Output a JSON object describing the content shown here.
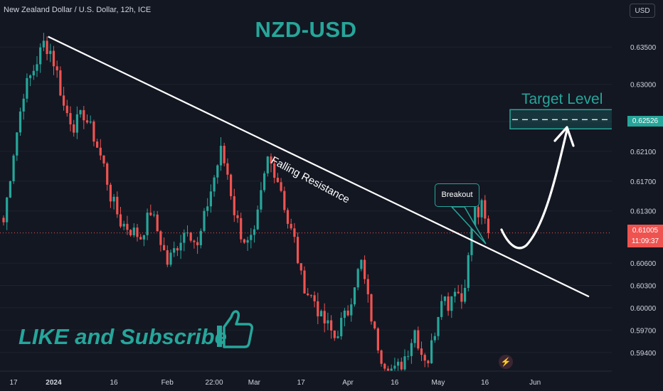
{
  "header": {
    "symbol_info": "New Zealand Dollar / U.S. Dollar, 12h, ICE",
    "title": "NZD-USD",
    "currency": "USD"
  },
  "annotations": {
    "target_label": "Target Level",
    "falling_resistance": "Falling Resistance",
    "breakout": "Breakout",
    "cta": "LIKE and Subscribe"
  },
  "price_tag": {
    "price": "0.61005",
    "countdown": "11:09:37",
    "color": "#ef5350"
  },
  "target_tag": {
    "price": "0.62526",
    "color": "#26a69a"
  },
  "colors": {
    "background": "#131722",
    "up": "#26a69a",
    "down": "#ef5350",
    "accent": "#26a69a",
    "axis_text": "#d1d4dc"
  },
  "icons": {
    "thumbs_up": "thumbs-up-icon",
    "bolt": "lightning-bolt-icon"
  },
  "chart_data": {
    "type": "candlestick",
    "symbol": "NZDUSD",
    "interval": "12h",
    "ylim": [
      0.5915,
      0.6375
    ],
    "y_ticks": [
      "0.63500",
      "0.63000",
      "0.62500",
      "0.62100",
      "0.61700",
      "0.61300",
      "0.60600",
      "0.60300",
      "0.60000",
      "0.59700",
      "0.59400"
    ],
    "y_tick_values": [
      0.635,
      0.63,
      0.625,
      0.621,
      0.617,
      0.613,
      0.606,
      0.603,
      0.6,
      0.597,
      0.594
    ],
    "x_ticks": [
      "17",
      "2024",
      "16",
      "Feb",
      "22:00",
      "Mar",
      "17",
      "Apr",
      "16",
      "May",
      "16",
      "Jun"
    ],
    "x_tick_positions": [
      0,
      12,
      30,
      46,
      60,
      72,
      86,
      100,
      114,
      127,
      141,
      156
    ],
    "last_price": 0.61005,
    "target_level": 0.62526,
    "trendline": {
      "start": [
        1,
        0.6364
      ],
      "end": [
        170,
        0.6015
      ]
    },
    "anchors": [
      [
        0,
        0.6115
      ],
      [
        3,
        0.621
      ],
      [
        6,
        0.629
      ],
      [
        9,
        0.632
      ],
      [
        12,
        0.6355
      ],
      [
        14,
        0.6345
      ],
      [
        16,
        0.6315
      ],
      [
        18,
        0.627
      ],
      [
        21,
        0.6245
      ],
      [
        24,
        0.626
      ],
      [
        27,
        0.623
      ],
      [
        30,
        0.619
      ],
      [
        32,
        0.615
      ],
      [
        35,
        0.6115
      ],
      [
        38,
        0.6105
      ],
      [
        41,
        0.6095
      ],
      [
        44,
        0.613
      ],
      [
        47,
        0.609
      ],
      [
        49,
        0.606
      ],
      [
        52,
        0.6085
      ],
      [
        55,
        0.611
      ],
      [
        58,
        0.608
      ],
      [
        61,
        0.614
      ],
      [
        63,
        0.6175
      ],
      [
        65,
        0.621
      ],
      [
        67,
        0.618
      ],
      [
        69,
        0.613
      ],
      [
        71,
        0.61
      ],
      [
        73,
        0.6085
      ],
      [
        75,
        0.6095
      ],
      [
        77,
        0.615
      ],
      [
        79,
        0.62
      ],
      [
        81,
        0.6185
      ],
      [
        83,
        0.616
      ],
      [
        85,
        0.6115
      ],
      [
        87,
        0.609
      ],
      [
        89,
        0.604
      ],
      [
        91,
        0.602
      ],
      [
        93,
        0.601
      ],
      [
        95,
        0.5985
      ],
      [
        97,
        0.5975
      ],
      [
        99,
        0.596
      ],
      [
        101,
        0.598
      ],
      [
        103,
        0.5995
      ],
      [
        105,
        0.6035
      ],
      [
        107,
        0.606
      ],
      [
        109,
        0.601
      ],
      [
        111,
        0.5965
      ],
      [
        113,
        0.5935
      ],
      [
        115,
        0.592
      ],
      [
        117,
        0.5915
      ],
      [
        119,
        0.5925
      ],
      [
        121,
        0.5945
      ],
      [
        123,
        0.597
      ],
      [
        125,
        0.594
      ],
      [
        127,
        0.593
      ],
      [
        129,
        0.597
      ],
      [
        131,
        0.602
      ],
      [
        133,
        0.6005
      ],
      [
        135,
        0.603
      ],
      [
        137,
        0.601
      ],
      [
        139,
        0.6065
      ],
      [
        140,
        0.611
      ],
      [
        141,
        0.613
      ],
      [
        142,
        0.6125
      ],
      [
        143,
        0.6135
      ],
      [
        144,
        0.6115
      ],
      [
        145,
        0.61005
      ]
    ]
  }
}
